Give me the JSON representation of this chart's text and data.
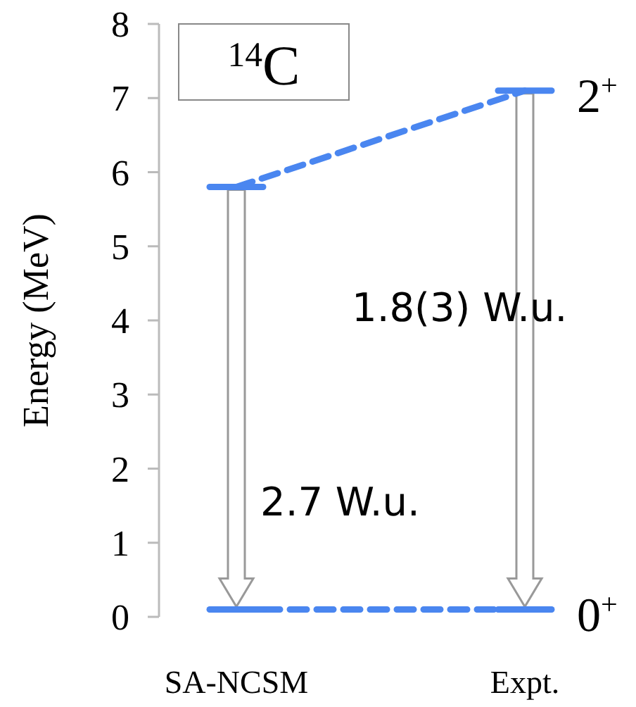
{
  "chart_data": {
    "type": "line",
    "title": "$^{14}$C",
    "ylabel": "Energy (MeV)",
    "categories": [
      "SA-NCSM",
      "Expt."
    ],
    "series": [
      {
        "name": "2$^{+}$",
        "color": "#4a86f0",
        "values": [
          5.8,
          7.1
        ]
      },
      {
        "name": "0$^{+}$",
        "color": "#4a86f0",
        "values": [
          0.1,
          0.1
        ]
      }
    ],
    "ylim": [
      0,
      8
    ],
    "yticks": [
      0,
      1,
      2,
      3,
      4,
      5,
      6,
      7,
      8
    ],
    "line_style": "dashed",
    "grid": false,
    "legend": "right",
    "annotations": [
      "2.7 W.u.",
      "1.8(3) W.u."
    ]
  }
}
